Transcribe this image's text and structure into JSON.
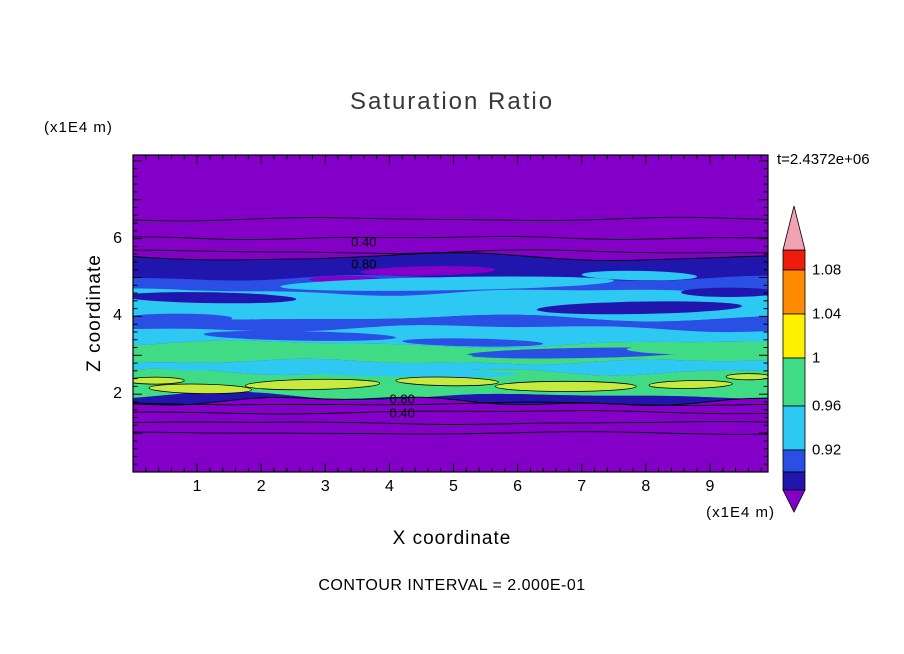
{
  "title": "Saturation Ratio",
  "time_label": "t=2.4372e+06",
  "axes": {
    "xlabel": "X coordinate",
    "ylabel": "Z coordinate",
    "unit_label": "(x1E4 m)",
    "x_ticks": [
      "1",
      "2",
      "3",
      "4",
      "5",
      "6",
      "7",
      "8",
      "9"
    ],
    "y_ticks": [
      "2",
      "4",
      "6"
    ]
  },
  "footer": {
    "contour_interval_label": "CONTOUR INTERVAL = 2.000E-01"
  },
  "colorbar": {
    "tick_labels": [
      "1.08",
      "1.04",
      "1",
      "0.96",
      "0.92"
    ],
    "segment_colors": [
      "red",
      "orange",
      "yellow",
      "green",
      "cyan",
      "blue",
      "navy"
    ],
    "arrow_top_color": "pink",
    "arrow_bottom_color": "purple"
  },
  "palette": {
    "purple": "#8400C8",
    "navy": "#2016AE",
    "blue": "#2A4FE4",
    "cyan": "#2EC9F2",
    "green": "#3FDC85",
    "yellowgreen": "#C8EA3E",
    "yellow": "#FFF000",
    "orange": "#FF8C00",
    "red": "#EE1C0C",
    "pink": "#F2A3B3"
  },
  "chart_data": {
    "type": "heatmap",
    "title": "Saturation Ratio",
    "xlabel": "X coordinate",
    "ylabel": "Z coordinate",
    "axis_units": "(x1E4 m)",
    "x_range": [
      0,
      9.9
    ],
    "z_range": [
      0,
      8.15
    ],
    "x_ticks": [
      1,
      2,
      3,
      4,
      5,
      6,
      7,
      8,
      9
    ],
    "z_ticks": [
      2,
      4,
      6
    ],
    "time_label": "t=2.4372e+06",
    "contour_interval": 0.2,
    "colorbar_values": [
      1.08,
      1.04,
      1,
      0.96,
      0.92
    ],
    "background": "purple",
    "band_boundaries": [
      5.53,
      4.99,
      4.63,
      3.96,
      3.7,
      3.29,
      2.83,
      2.57,
      1.95,
      1.82
    ],
    "band_colors": [
      "navy",
      "blue",
      "cyan",
      "blue",
      "cyan",
      "green",
      "cyan",
      "green",
      "navy"
    ],
    "streaks": [
      {
        "x": 4.6,
        "z": 5.17,
        "rx": 1.05,
        "ry": 0.12,
        "color": "purple",
        "tilt": -1
      },
      {
        "x": 6.5,
        "z": 4.92,
        "rx": 0.65,
        "ry": 0.1,
        "color": "purple",
        "tilt": 1
      },
      {
        "x": 3.3,
        "z": 4.95,
        "rx": 0.55,
        "ry": 0.09,
        "color": "purple",
        "tilt": 0
      },
      {
        "x": 4.9,
        "z": 4.84,
        "rx": 2.6,
        "ry": 0.17,
        "color": "cyan",
        "tilt": -1
      },
      {
        "x": 7.9,
        "z": 5.05,
        "rx": 0.9,
        "ry": 0.12,
        "color": "cyan",
        "tilt": 1
      },
      {
        "x": 1.2,
        "z": 4.48,
        "rx": 1.35,
        "ry": 0.14,
        "color": "navy",
        "tilt": 1
      },
      {
        "x": 7.9,
        "z": 4.22,
        "rx": 1.6,
        "ry": 0.16,
        "color": "navy",
        "tilt": -1
      },
      {
        "x": 9.3,
        "z": 4.62,
        "rx": 0.75,
        "ry": 0.12,
        "color": "navy",
        "tilt": 0
      },
      {
        "x": 0.5,
        "z": 5.25,
        "rx": 0.6,
        "ry": 0.1,
        "color": "navy",
        "tilt": 0
      },
      {
        "x": 2.6,
        "z": 3.5,
        "rx": 1.5,
        "ry": 0.12,
        "color": "blue",
        "tilt": 1
      },
      {
        "x": 7.0,
        "z": 3.06,
        "rx": 1.8,
        "ry": 0.13,
        "color": "blue",
        "tilt": -1
      },
      {
        "x": 0.7,
        "z": 3.95,
        "rx": 0.85,
        "ry": 0.12,
        "color": "blue",
        "tilt": 0
      },
      {
        "x": 5.3,
        "z": 3.33,
        "rx": 1.1,
        "ry": 0.1,
        "color": "blue",
        "tilt": 1
      },
      {
        "x": 1.8,
        "z": 3.17,
        "rx": 1.35,
        "ry": 0.14,
        "color": "green",
        "tilt": -1
      },
      {
        "x": 8.9,
        "z": 3.12,
        "rx": 1.2,
        "ry": 0.12,
        "color": "green",
        "tilt": 1
      },
      {
        "x": 4.3,
        "z": 2.98,
        "rx": 1.0,
        "ry": 0.1,
        "color": "green",
        "tilt": 0
      },
      {
        "x": 4.2,
        "z": 2.56,
        "rx": 1.8,
        "ry": 0.11,
        "color": "cyan",
        "tilt": 1
      },
      {
        "x": 7.6,
        "z": 2.66,
        "rx": 1.2,
        "ry": 0.09,
        "color": "cyan",
        "tilt": -1
      },
      {
        "x": 1.1,
        "z": 2.7,
        "rx": 0.8,
        "ry": 0.09,
        "color": "cyan",
        "tilt": 0
      },
      {
        "x": 0.35,
        "z": 2.35,
        "rx": 0.45,
        "ry": 0.09,
        "color": "yellowgreen",
        "outline": true,
        "tilt": 0
      },
      {
        "x": 1.05,
        "z": 2.14,
        "rx": 0.8,
        "ry": 0.12,
        "color": "yellowgreen",
        "outline": true,
        "tilt": 1
      },
      {
        "x": 2.8,
        "z": 2.25,
        "rx": 1.05,
        "ry": 0.13,
        "color": "yellowgreen",
        "outline": true,
        "tilt": -1
      },
      {
        "x": 4.9,
        "z": 2.33,
        "rx": 0.8,
        "ry": 0.11,
        "color": "yellowgreen",
        "outline": true,
        "tilt": 1
      },
      {
        "x": 6.75,
        "z": 2.2,
        "rx": 1.1,
        "ry": 0.13,
        "color": "yellowgreen",
        "outline": true,
        "tilt": 0
      },
      {
        "x": 8.7,
        "z": 2.25,
        "rx": 0.65,
        "ry": 0.1,
        "color": "yellowgreen",
        "outline": true,
        "tilt": -1
      },
      {
        "x": 9.6,
        "z": 2.45,
        "rx": 0.35,
        "ry": 0.08,
        "color": "yellowgreen",
        "outline": true,
        "tilt": 0
      }
    ],
    "contour_lines": [
      6.5,
      6.02,
      5.66,
      1.75,
      1.54,
      1.26,
      1.0
    ],
    "contour_labels": [
      {
        "text": "0.40",
        "x": 3.6,
        "z": 5.9
      },
      {
        "text": "0.80",
        "x": 3.6,
        "z": 5.33
      },
      {
        "text": "0.80",
        "x": 4.2,
        "z": 1.86
      },
      {
        "text": "0.40",
        "x": 4.2,
        "z": 1.5
      }
    ]
  }
}
